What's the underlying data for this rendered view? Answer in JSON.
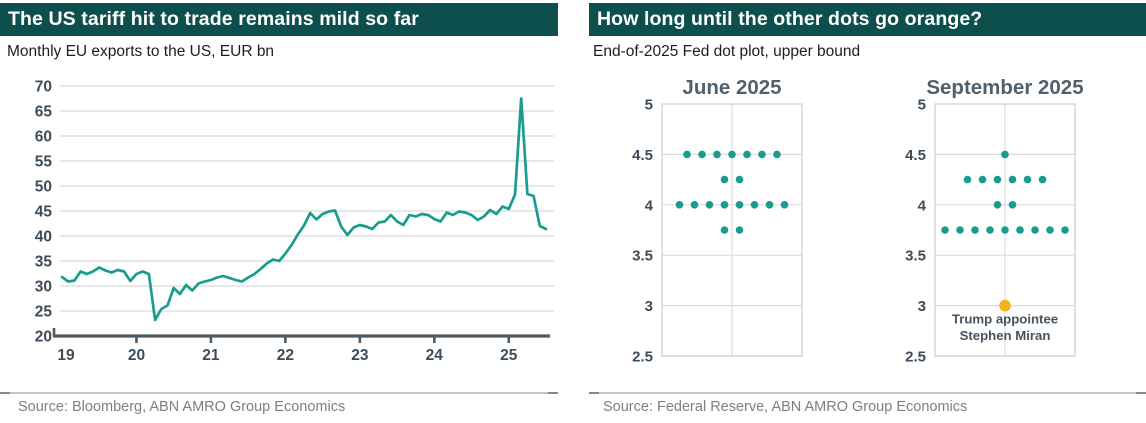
{
  "panels": {
    "left": {
      "title": "The US tariff hit to trade remains mild so far",
      "subtitle": "Monthly EU exports to the US, EUR bn",
      "source": "Source: Bloomberg, ABN AMRO Group Economics"
    },
    "right": {
      "title": "How long until the other dots go orange?",
      "subtitle": "End-of-2025 Fed dot plot, upper bound",
      "source": "Source: Federal Reserve, ABN AMRO Group Economics"
    }
  },
  "colors": {
    "header_bg": "#0d4f4c",
    "header_text": "#ffffff",
    "teal": "#189c8d",
    "orange": "#f5b31b",
    "axis_label": "#3e4c59",
    "plot_title": "#51606d",
    "annotation_text": "#47545f",
    "grid": "#dadbdc",
    "box_border": "#cdd0d2",
    "axis_line": "#4e5a64",
    "source_text": "#7c8083",
    "rule_mid": "#c4c6c8",
    "rule_end": "#85898c"
  },
  "chart_data": [
    {
      "type": "line",
      "title": "Monthly EU exports to the US, EUR bn",
      "x_unit": "month",
      "x_start": "Jan 2019",
      "x_end": "Jul 2025",
      "x_tick_labels": [
        "19",
        "20",
        "21",
        "22",
        "23",
        "24",
        "25"
      ],
      "ylim": [
        20,
        70
      ],
      "y_ticks": [
        20,
        25,
        30,
        35,
        40,
        45,
        50,
        55,
        60,
        65,
        70
      ],
      "grid": "horizontal",
      "series": [
        {
          "name": "Monthly EU exports to the US, EUR bn",
          "color": "#189c8d",
          "values": [
            31.8,
            30.9,
            31.1,
            32.9,
            32.4,
            32.9,
            33.7,
            33.1,
            32.7,
            33.2,
            32.9,
            31.0,
            32.4,
            32.9,
            32.4,
            23.2,
            25.4,
            26.1,
            29.6,
            28.4,
            30.2,
            29.1,
            30.5,
            30.9,
            31.2,
            31.7,
            32.0,
            31.6,
            31.2,
            30.9,
            31.7,
            32.4,
            33.4,
            34.5,
            35.3,
            35.0,
            36.5,
            38.2,
            40.3,
            42.1,
            44.6,
            43.3,
            44.4,
            44.9,
            45.1,
            41.9,
            40.2,
            41.7,
            42.2,
            41.9,
            41.4,
            42.7,
            42.9,
            44.2,
            42.9,
            42.2,
            44.2,
            43.9,
            44.4,
            44.2,
            43.4,
            42.9,
            44.7,
            44.2,
            44.9,
            44.7,
            44.2,
            43.2,
            43.9,
            45.2,
            44.4,
            45.9,
            45.4,
            48.3,
            67.5,
            48.4,
            48.0,
            42.0,
            41.4
          ]
        }
      ]
    },
    {
      "type": "scatter",
      "variant": "fed-dot-plot",
      "title": "June 2025",
      "ylim": [
        2.5,
        5
      ],
      "y_ticks": [
        2.5,
        3,
        3.5,
        4,
        4.5,
        5
      ],
      "dot_color": "#189c8d",
      "rows": [
        {
          "rate": 4.5,
          "count": 7
        },
        {
          "rate": 4.25,
          "count": 2
        },
        {
          "rate": 4.0,
          "count": 8
        },
        {
          "rate": 3.75,
          "count": 2
        }
      ]
    },
    {
      "type": "scatter",
      "variant": "fed-dot-plot",
      "title": "September 2025",
      "ylim": [
        2.5,
        5
      ],
      "y_ticks": [
        2.5,
        3,
        3.5,
        4,
        4.5,
        5
      ],
      "dot_color": "#189c8d",
      "rows": [
        {
          "rate": 4.5,
          "count": 1
        },
        {
          "rate": 4.25,
          "count": 6
        },
        {
          "rate": 4.0,
          "count": 2
        },
        {
          "rate": 3.75,
          "count": 9
        }
      ],
      "special_dot": {
        "rate": 3.0,
        "count": 1,
        "color": "#f5b31b",
        "label_lines": [
          "Trump appointee",
          "Stephen Miran"
        ]
      }
    }
  ]
}
